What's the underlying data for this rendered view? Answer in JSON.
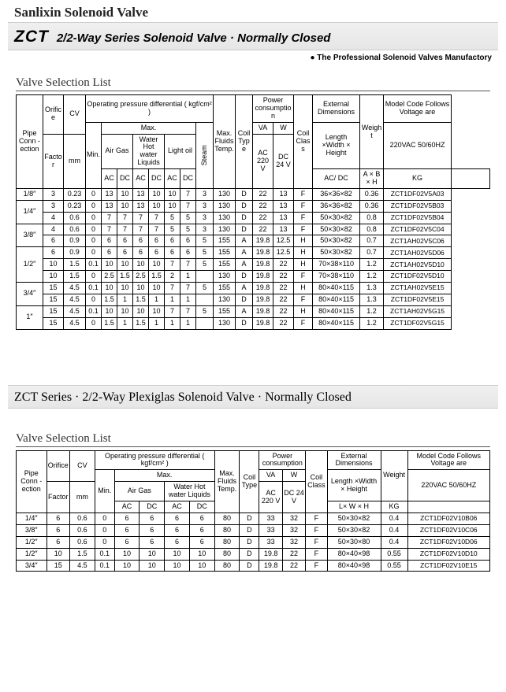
{
  "company": "Sanlixin Solenoid Valve",
  "title1_big": "ZCT",
  "title1_rest": "2/2-Way Series Solenoid Valve · Normally Closed",
  "tagline": "The Professional Solenoid Valves Manufactory",
  "section_label": "Valve Selection List",
  "title2_big": "ZCT",
  "title2_rest": "Series · 2/2-Way Plexiglas Solenoid Valve · Normally Closed",
  "h": {
    "pipe": "Pipe Conn -ection",
    "orifice": "Orifice",
    "cv": "CV",
    "op_diff": "Operating pressure differential ( kgf/cm² )",
    "max": "Max.",
    "factor": "Factor",
    "mm": "mm",
    "min": "Min.",
    "air_gas": "Air Gas",
    "water": "Water Hot water Liquids",
    "light_oil": "Light oil",
    "steam": "Steam",
    "ac": "AC",
    "dc": "DC",
    "acdc": "AC/ DC",
    "max_fluids": "Max. Fluids Temp.",
    "coil_type": "Coil Type",
    "power": "Power consumption",
    "va": "VA",
    "w": "W",
    "ac220": "AC 220 V",
    "dc24": "DC 24 V",
    "coil_class": "Coil Class",
    "ext_dim": "External Dimensions",
    "lwh": "Length ×Width × Height",
    "axbxh": "A × B × H",
    "lxwxh": "L× W × H",
    "weight": "Weight",
    "kg": "KG",
    "model": "Model Code Follows Voltage are",
    "volt": "220VAC 50/60HZ"
  },
  "t1_rows": [
    {
      "pipe": "1/8″",
      "or": "3",
      "cv": "0.23",
      "min": "0",
      "a_ac": "13",
      "a_dc": "10",
      "w_ac": "13",
      "w_dc": "10",
      "lo_ac": "10",
      "lo_dc": "7",
      "st": "3",
      "mft": "130",
      "ct": "D",
      "va": "22",
      "w": "13",
      "cc": "F",
      "dim": "36×36×82",
      "kg": "0.36",
      "model": "ZCT1DF02V5A03"
    },
    {
      "pipe": "1/4″",
      "pr": 2,
      "or": "3",
      "cv": "0.23",
      "min": "0",
      "a_ac": "13",
      "a_dc": "10",
      "w_ac": "13",
      "w_dc": "10",
      "lo_ac": "10",
      "lo_dc": "7",
      "st": "3",
      "mft": "130",
      "ct": "D",
      "va": "22",
      "w": "13",
      "cc": "F",
      "dim": "36×36×82",
      "kg": "0.36",
      "model": "ZCT1DF02V5B03"
    },
    {
      "or": "4",
      "cv": "0.6",
      "min": "0",
      "a_ac": "7",
      "a_dc": "7",
      "w_ac": "7",
      "w_dc": "7",
      "lo_ac": "5",
      "lo_dc": "5",
      "st": "3",
      "mft": "130",
      "ct": "D",
      "va": "22",
      "w": "13",
      "cc": "F",
      "dim": "50×30×82",
      "kg": "0.8",
      "model": "ZCT1DF02V5B04"
    },
    {
      "pipe": "3/8″",
      "pr": 2,
      "or": "4",
      "cv": "0.6",
      "min": "0",
      "a_ac": "7",
      "a_dc": "7",
      "w_ac": "7",
      "w_dc": "7",
      "lo_ac": "5",
      "lo_dc": "5",
      "st": "3",
      "mft": "130",
      "ct": "D",
      "va": "22",
      "w": "13",
      "cc": "F",
      "dim": "50×30×82",
      "kg": "0.8",
      "model": "ZCT1DF02V5C04"
    },
    {
      "or": "6",
      "cv": "0.9",
      "min": "0",
      "a_ac": "6",
      "a_dc": "6",
      "w_ac": "6",
      "w_dc": "6",
      "lo_ac": "6",
      "lo_dc": "6",
      "st": "5",
      "mft": "155",
      "ct": "A",
      "va": "19.8",
      "w": "12.5",
      "cc": "H",
      "dim": "50×30×82",
      "kg": "0.7",
      "model": "ZCT1AH02V5C06"
    },
    {
      "pipe": "1/2″",
      "pr": 3,
      "or": "6",
      "cv": "0.9",
      "min": "0",
      "a_ac": "6",
      "a_dc": "6",
      "w_ac": "6",
      "w_dc": "6",
      "lo_ac": "6",
      "lo_dc": "6",
      "st": "5",
      "mft": "155",
      "ct": "A",
      "va": "19.8",
      "w": "12.5",
      "cc": "H",
      "dim": "50×30×82",
      "kg": "0.7",
      "model": "ZCT1AH02V5D06"
    },
    {
      "or": "10",
      "cv": "1.5",
      "min": "0.1",
      "a_ac": "10",
      "a_dc": "10",
      "w_ac": "10",
      "w_dc": "10",
      "lo_ac": "7",
      "lo_dc": "7",
      "st": "5",
      "mft": "155",
      "ct": "A",
      "va": "19.8",
      "w": "22",
      "cc": "H",
      "dim": "70×38×110",
      "kg": "1.2",
      "model": "ZCT1AH02V5D10"
    },
    {
      "or": "10",
      "cv": "1.5",
      "min": "0",
      "a_ac": "2.5",
      "a_dc": "1.5",
      "w_ac": "2.5",
      "w_dc": "1.5",
      "lo_ac": "2",
      "lo_dc": "1",
      "st": "",
      "mft": "130",
      "ct": "D",
      "va": "19.8",
      "w": "22",
      "cc": "F",
      "dim": "70×38×110",
      "kg": "1.2",
      "model": "ZCT1DF02V5D10"
    },
    {
      "pipe": "3/4″",
      "pr": 2,
      "or": "15",
      "cv": "4.5",
      "min": "0.1",
      "a_ac": "10",
      "a_dc": "10",
      "w_ac": "10",
      "w_dc": "10",
      "lo_ac": "7",
      "lo_dc": "7",
      "st": "5",
      "mft": "155",
      "ct": "A",
      "va": "19.8",
      "w": "22",
      "cc": "H",
      "dim": "80×40×115",
      "kg": "1.3",
      "model": "ZCT1AH02V5E15"
    },
    {
      "or": "15",
      "cv": "4.5",
      "min": "0",
      "a_ac": "1.5",
      "a_dc": "1",
      "w_ac": "1.5",
      "w_dc": "1",
      "lo_ac": "1",
      "lo_dc": "1",
      "st": "",
      "mft": "130",
      "ct": "D",
      "va": "19.8",
      "w": "22",
      "cc": "F",
      "dim": "80×40×115",
      "kg": "1.3",
      "model": "ZCT1DF02V5E15"
    },
    {
      "pipe": "1″",
      "pr": 2,
      "or": "15",
      "cv": "4.5",
      "min": "0.1",
      "a_ac": "10",
      "a_dc": "10",
      "w_ac": "10",
      "w_dc": "10",
      "lo_ac": "7",
      "lo_dc": "7",
      "st": "5",
      "mft": "155",
      "ct": "A",
      "va": "19.8",
      "w": "22",
      "cc": "H",
      "dim": "80×40×115",
      "kg": "1.2",
      "model": "ZCT1AH02V5G15"
    },
    {
      "or": "15",
      "cv": "4.5",
      "min": "0",
      "a_ac": "1.5",
      "a_dc": "1",
      "w_ac": "1.5",
      "w_dc": "1",
      "lo_ac": "1",
      "lo_dc": "1",
      "st": "",
      "mft": "130",
      "ct": "D",
      "va": "19.8",
      "w": "22",
      "cc": "F",
      "dim": "80×40×115",
      "kg": "1.2",
      "model": "ZCT1DF02V5G15"
    }
  ],
  "t2_rows": [
    {
      "pipe": "1/4″",
      "or": "6",
      "cv": "0.6",
      "min": "0",
      "a_ac": "6",
      "a_dc": "6",
      "w_ac": "6",
      "w_dc": "6",
      "mft": "80",
      "ct": "D",
      "va": "33",
      "w": "32",
      "cc": "F",
      "dim": "50×30×82",
      "kg": "0.4",
      "model": "ZCT1DF02V10B06"
    },
    {
      "pipe": "3/8″",
      "or": "6",
      "cv": "0.6",
      "min": "0",
      "a_ac": "6",
      "a_dc": "6",
      "w_ac": "6",
      "w_dc": "6",
      "mft": "80",
      "ct": "D",
      "va": "33",
      "w": "32",
      "cc": "F",
      "dim": "50×30×82",
      "kg": "0.4",
      "model": "ZCT1DF02V10C06"
    },
    {
      "pipe": "1/2″",
      "or": "6",
      "cv": "0.6",
      "min": "0",
      "a_ac": "6",
      "a_dc": "6",
      "w_ac": "6",
      "w_dc": "6",
      "mft": "80",
      "ct": "D",
      "va": "33",
      "w": "32",
      "cc": "F",
      "dim": "50×30×80",
      "kg": "0.4",
      "model": "ZCT1DF02V10D06"
    },
    {
      "pipe": "1/2″",
      "or": "10",
      "cv": "1.5",
      "min": "0.1",
      "a_ac": "10",
      "a_dc": "10",
      "w_ac": "10",
      "w_dc": "10",
      "mft": "80",
      "ct": "D",
      "va": "19.8",
      "w": "22",
      "cc": "F",
      "dim": "80×40×98",
      "kg": "0.55",
      "model": "ZCT1DF02V10D10"
    },
    {
      "pipe": "3/4″",
      "or": "15",
      "cv": "4.5",
      "min": "0.1",
      "a_ac": "10",
      "a_dc": "10",
      "w_ac": "10",
      "w_dc": "10",
      "mft": "80",
      "ct": "D",
      "va": "19.8",
      "w": "22",
      "cc": "F",
      "dim": "80×40×98",
      "kg": "0.55",
      "model": "ZCT1DF02V10E15"
    }
  ]
}
